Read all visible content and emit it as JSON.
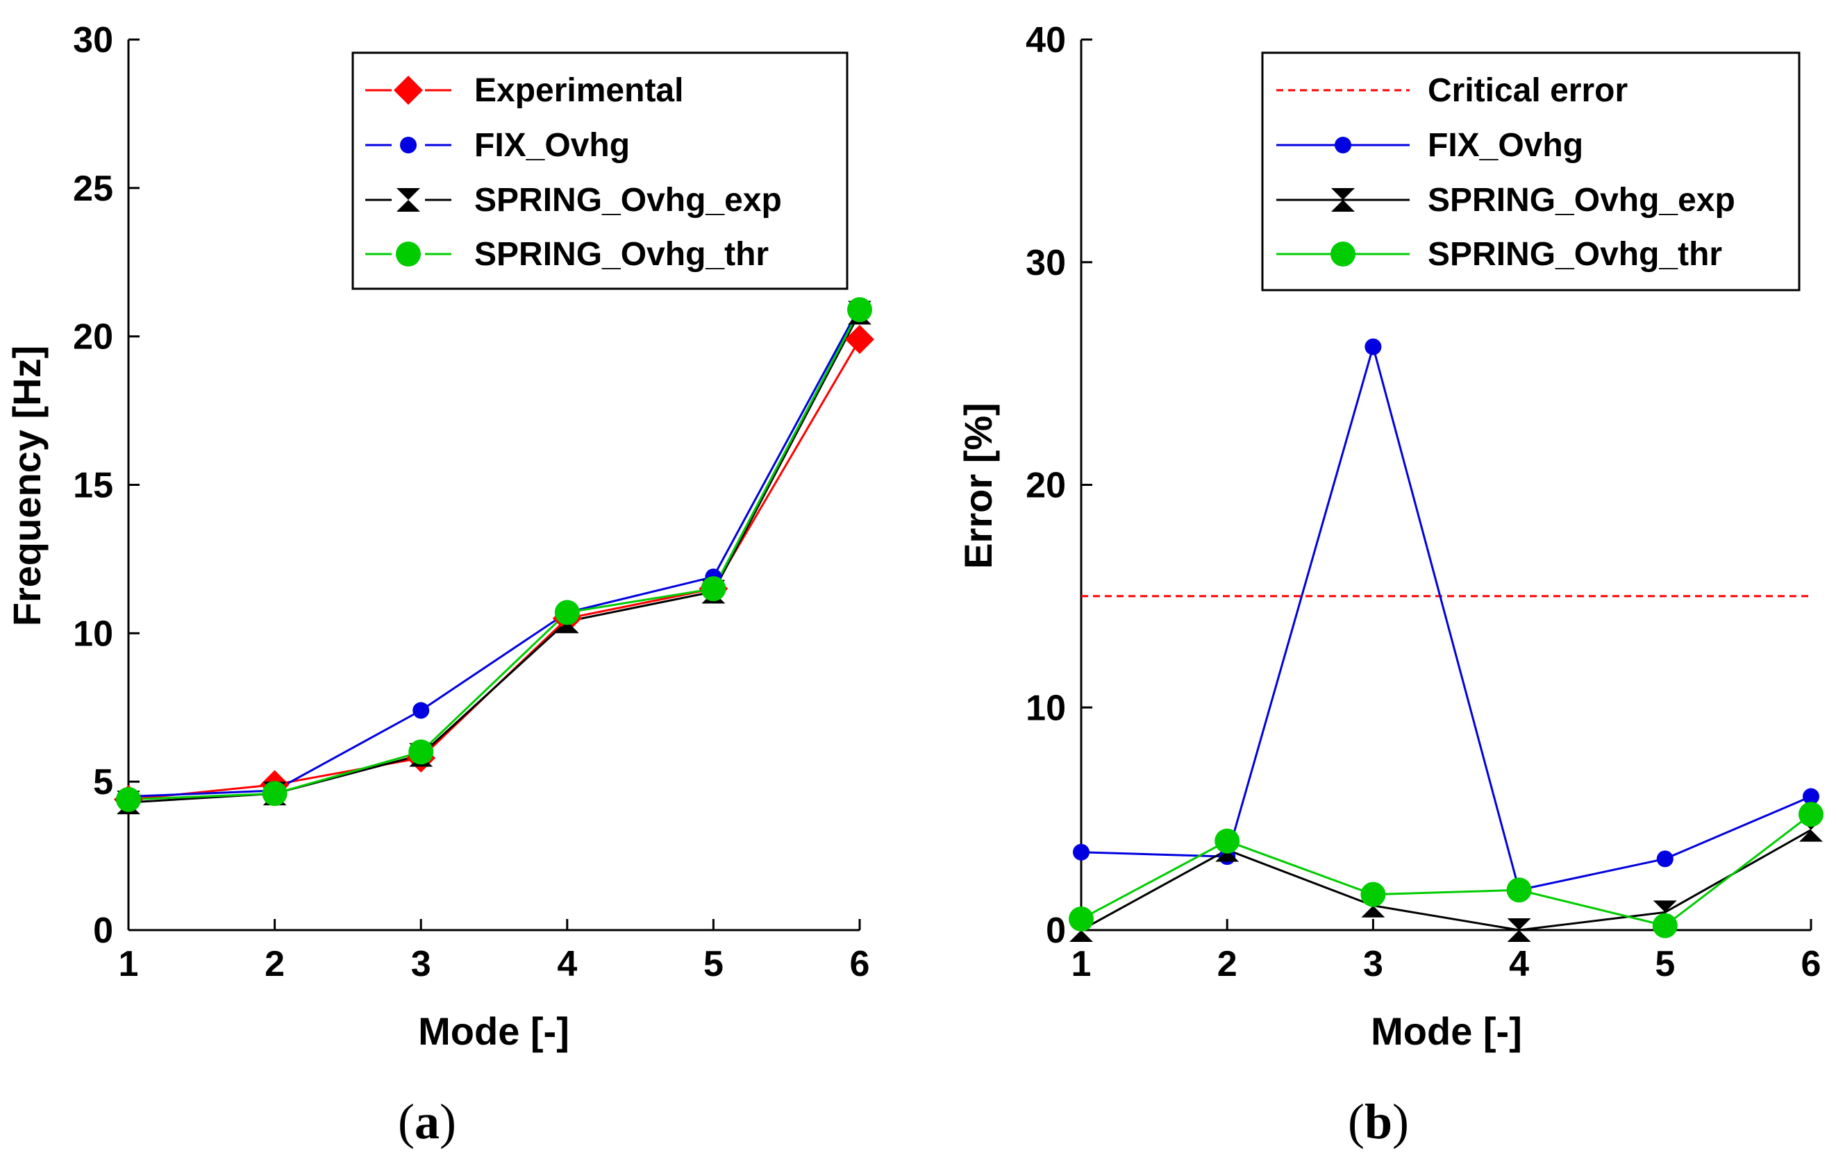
{
  "chart_data": [
    {
      "id": "a",
      "type": "line",
      "caption": {
        "open": "(",
        "letter": "a",
        "close": ")"
      },
      "xlabel": "Mode [-]",
      "ylabel": "Frequency [Hz]",
      "xlim": [
        1,
        6
      ],
      "ylim": [
        0,
        30
      ],
      "xticks": [
        1,
        2,
        3,
        4,
        5,
        6
      ],
      "yticks": [
        0,
        5,
        10,
        15,
        20,
        25,
        30
      ],
      "grid": false,
      "legend_position": "top-right",
      "x": [
        1,
        2,
        3,
        4,
        5,
        6
      ],
      "series": [
        {
          "name": "Experimental",
          "color": "#ff0000",
          "marker": "diamond",
          "legend_dash": true,
          "values": [
            4.4,
            4.9,
            5.8,
            10.5,
            11.5,
            19.9
          ]
        },
        {
          "name": "FIX_Ovhg",
          "color": "#0000e0",
          "marker": "circle-small",
          "legend_dash": true,
          "values": [
            4.5,
            4.7,
            7.4,
            10.7,
            11.9,
            21.0
          ]
        },
        {
          "name": "SPRING_Ovhg_exp",
          "color": "#000000",
          "marker": "hourglass",
          "legend_dash": true,
          "values": [
            4.3,
            4.6,
            5.9,
            10.4,
            11.4,
            20.8
          ]
        },
        {
          "name": "SPRING_Ovhg_thr",
          "color": "#00cc00",
          "marker": "circle-large",
          "legend_dash": true,
          "values": [
            4.4,
            4.6,
            6.0,
            10.7,
            11.5,
            20.9
          ]
        }
      ]
    },
    {
      "id": "b",
      "type": "line",
      "caption": {
        "open": "(",
        "letter": "b",
        "close": ")"
      },
      "xlabel": "Mode [-]",
      "ylabel": "Error [%]",
      "xlim": [
        1,
        6
      ],
      "ylim": [
        0,
        40
      ],
      "xticks": [
        1,
        2,
        3,
        4,
        5,
        6
      ],
      "yticks": [
        0,
        10,
        20,
        30,
        40
      ],
      "grid": false,
      "legend_position": "top-right",
      "x": [
        1,
        2,
        3,
        4,
        5,
        6
      ],
      "reference_line": {
        "name": "Critical error",
        "y": 15,
        "color": "#ff0000",
        "style": "dashed"
      },
      "series": [
        {
          "name": "FIX_Ovhg",
          "color": "#0000e0",
          "marker": "circle-small",
          "legend_dash": false,
          "values": [
            3.5,
            3.3,
            26.2,
            1.8,
            3.2,
            6.0
          ]
        },
        {
          "name": "SPRING_Ovhg_exp",
          "color": "#000000",
          "marker": "hourglass",
          "legend_dash": false,
          "values": [
            0.0,
            3.6,
            1.1,
            0.0,
            0.8,
            4.5
          ]
        },
        {
          "name": "SPRING_Ovhg_thr",
          "color": "#00cc00",
          "marker": "circle-large",
          "legend_dash": false,
          "values": [
            0.5,
            4.0,
            1.6,
            1.8,
            0.2,
            5.2
          ]
        }
      ]
    }
  ]
}
